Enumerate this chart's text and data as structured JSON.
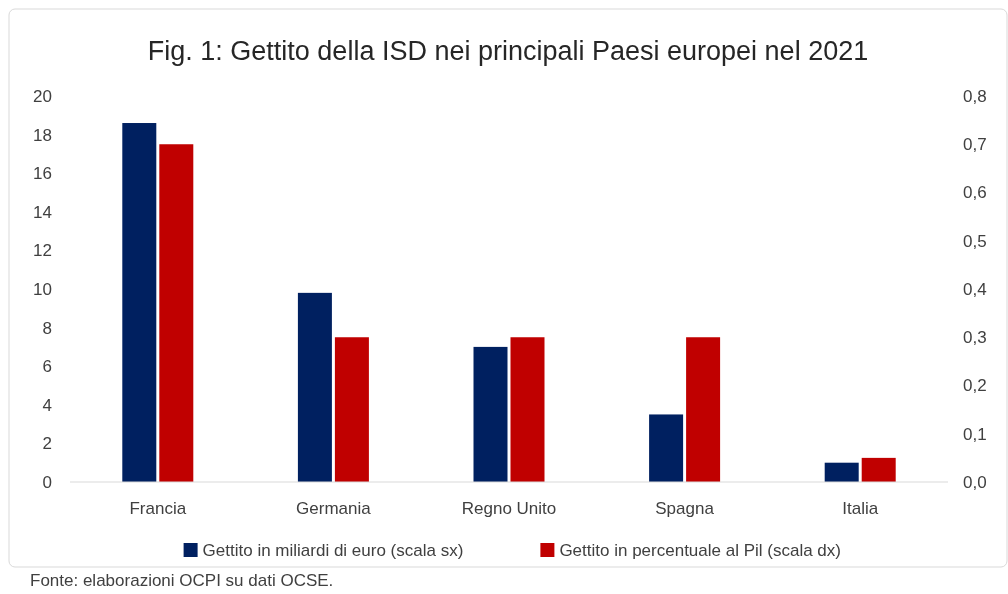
{
  "chart_data": {
    "type": "bar",
    "title": "Fig. 1: Gettito della ISD nei principali Paesi europei nel 2021",
    "categories": [
      "Francia",
      "Germania",
      "Regno Unito",
      "Spagna",
      "Italia"
    ],
    "series": [
      {
        "name": "Gettito in miliardi di euro (scala sx)",
        "color": "#002060",
        "values": [
          18.6,
          9.8,
          7.0,
          3.5,
          1.0
        ]
      },
      {
        "name": "Gettito in percentuale al Pil (scala dx)",
        "color": "#c00000",
        "axis": "y2",
        "values": [
          0.7,
          0.3,
          0.3,
          0.3,
          0.05
        ]
      }
    ],
    "ylim": [
      0,
      20
    ],
    "yticks": [
      0,
      2,
      4,
      6,
      8,
      10,
      12,
      14,
      16,
      18,
      20
    ],
    "y2lim": [
      0,
      0.8
    ],
    "y2ticks": [
      {
        "value": 0,
        "label": "0,0"
      },
      {
        "value": 0.1,
        "label": "0,1"
      },
      {
        "value": 0.2,
        "label": "0,2"
      },
      {
        "value": 0.3,
        "label": "0,3"
      },
      {
        "value": 0.4,
        "label": "0,4"
      },
      {
        "value": 0.5,
        "label": "0,5"
      },
      {
        "value": 0.6,
        "label": "0,6"
      },
      {
        "value": 0.7,
        "label": "0,7"
      },
      {
        "value": 0.8,
        "label": "0,8"
      }
    ],
    "grid": false,
    "legend": "bottom",
    "annotations": [
      "Fonte: elaborazioni OCPI su dati OCSE."
    ]
  }
}
